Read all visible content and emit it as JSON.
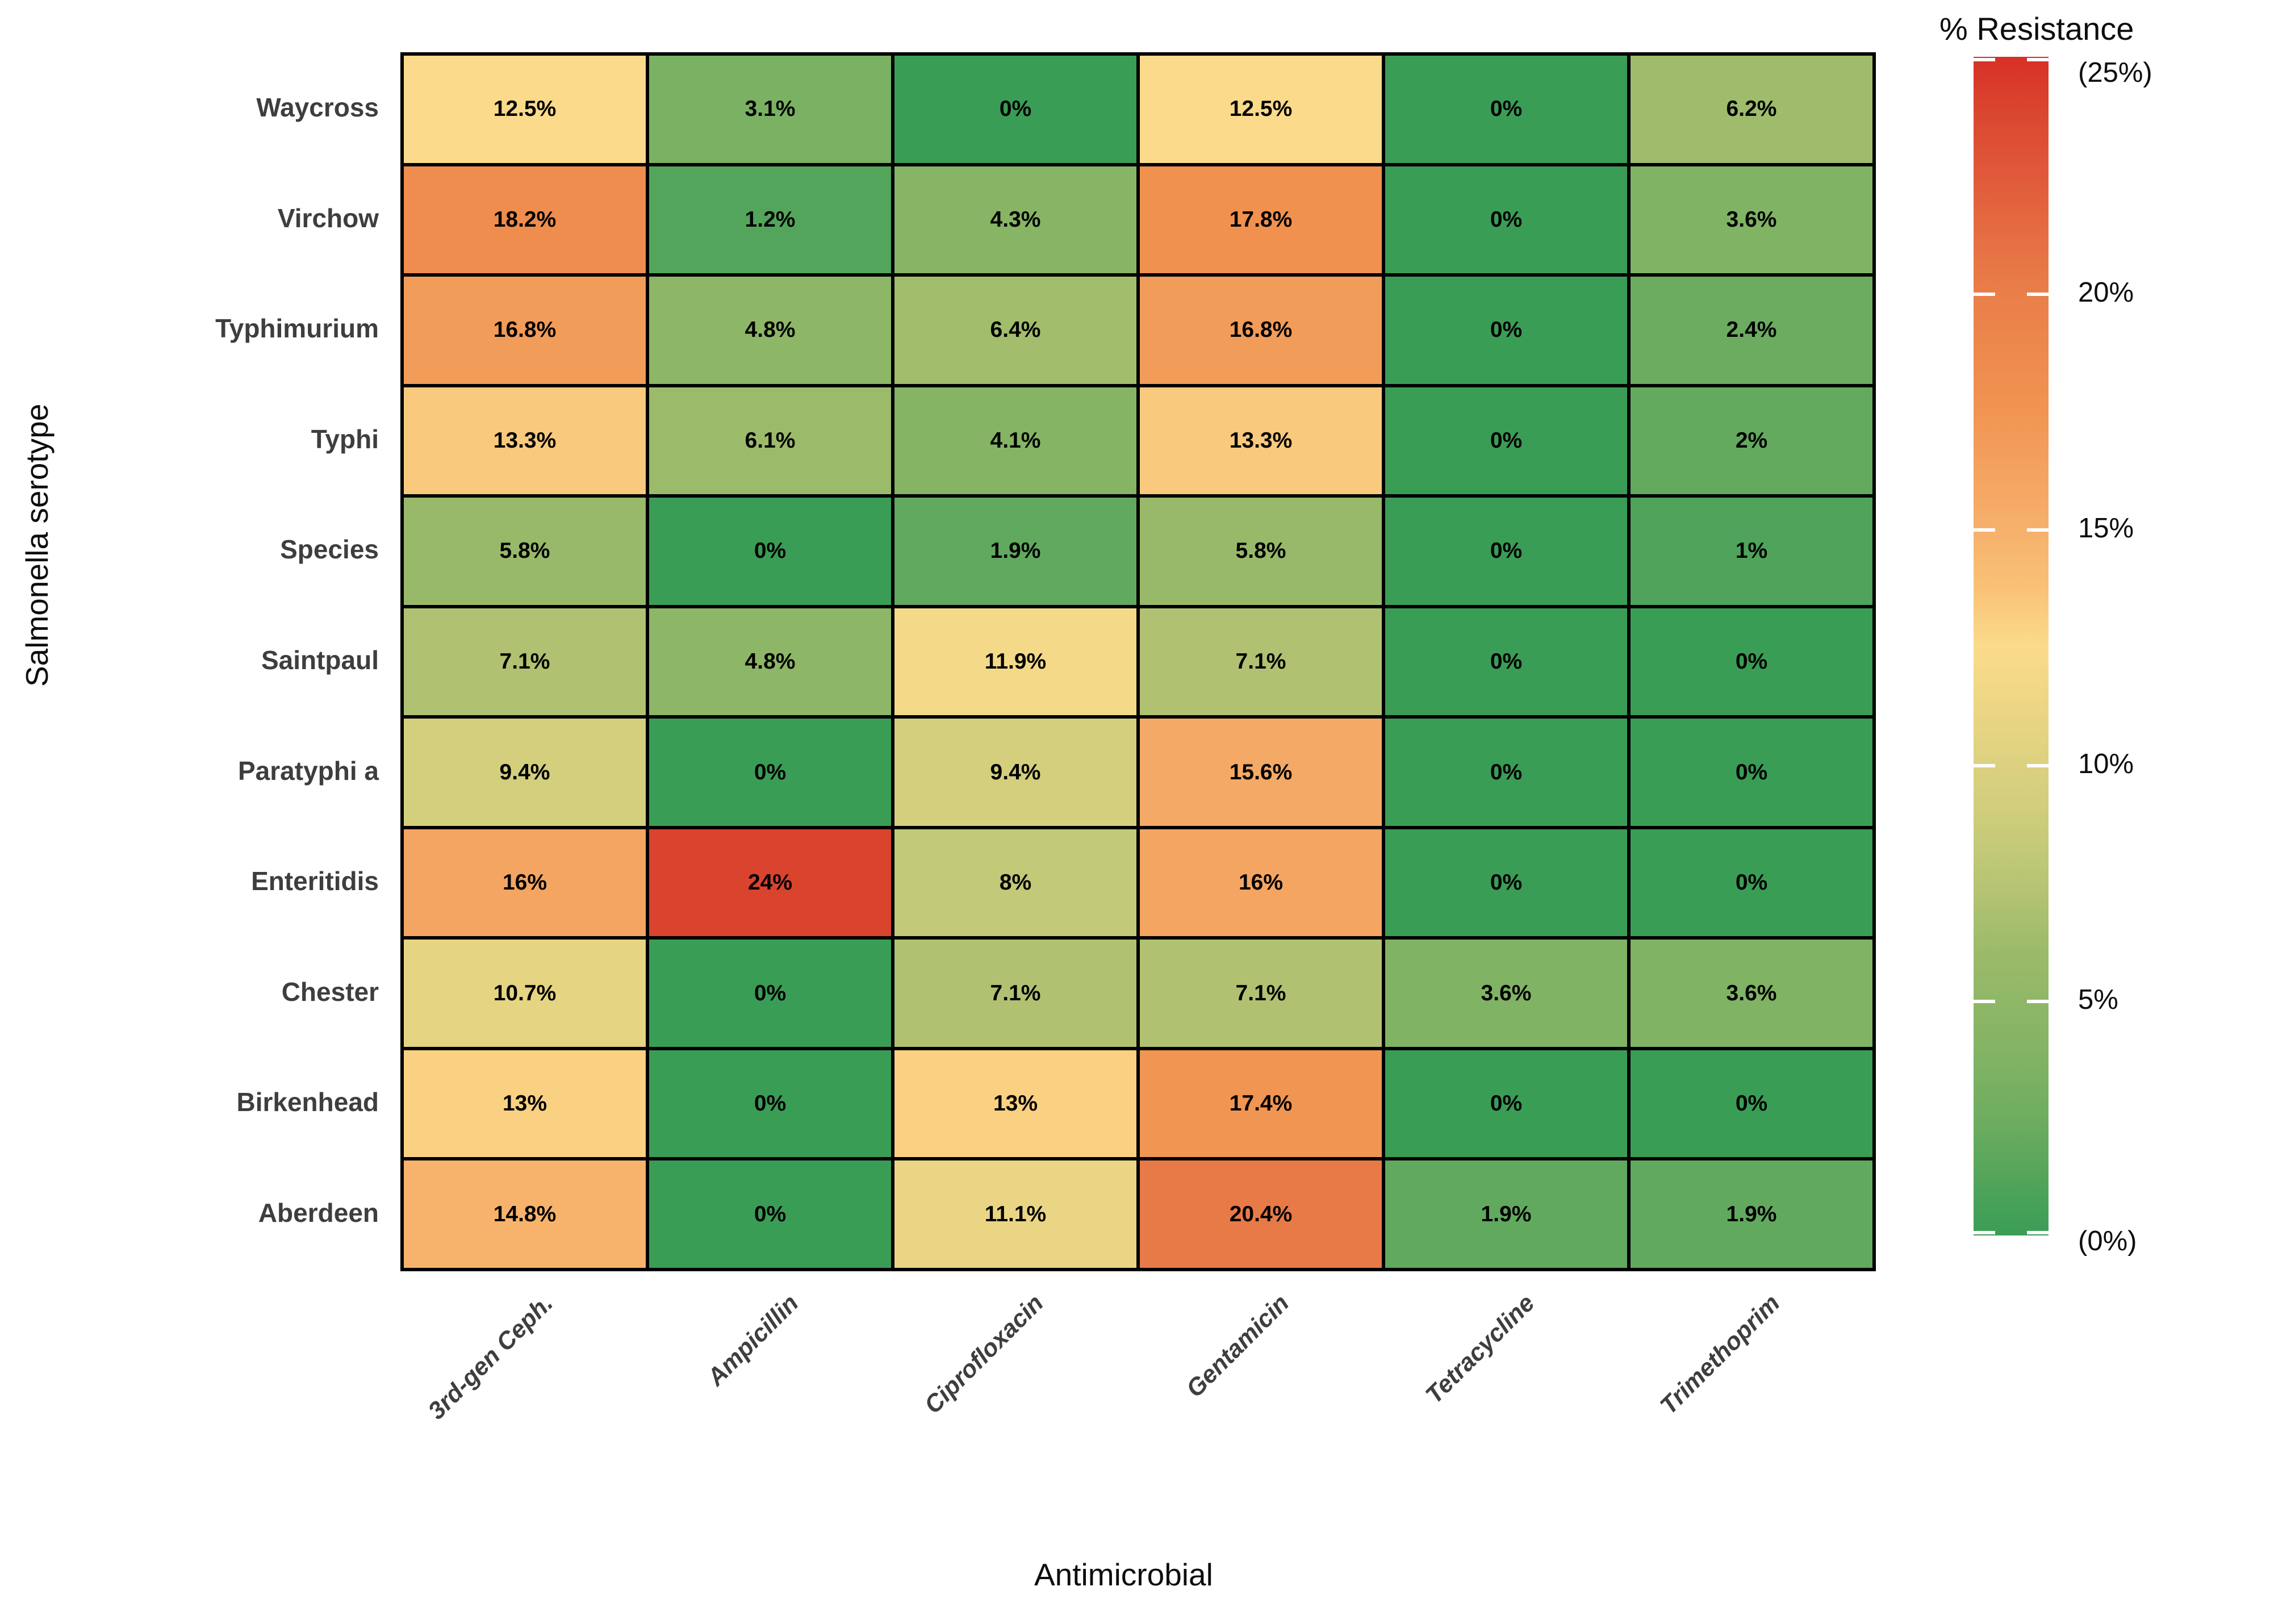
{
  "chart_data": {
    "type": "heatmap",
    "title": "",
    "xlabel": "Antimicrobial",
    "ylabel": "Salmonella serotype",
    "rows": [
      "Waycross",
      "Virchow",
      "Typhimurium",
      "Typhi",
      "Species",
      "Saintpaul",
      "Paratyphi a",
      "Enteritidis",
      "Chester",
      "Birkenhead",
      "Aberdeen"
    ],
    "columns": [
      "3rd-gen Ceph.",
      "Ampicillin",
      "Ciprofloxacin",
      "Gentamicin",
      "Tetracycline",
      "Trimethoprim"
    ],
    "values": [
      [
        12.5,
        3.1,
        0,
        12.5,
        0,
        6.2
      ],
      [
        18.2,
        1.2,
        4.3,
        17.8,
        0,
        3.6
      ],
      [
        16.8,
        4.8,
        6.4,
        16.8,
        0,
        2.4
      ],
      [
        13.3,
        6.1,
        4.1,
        13.3,
        0,
        2
      ],
      [
        5.8,
        0,
        1.9,
        5.8,
        0,
        1
      ],
      [
        7.1,
        4.8,
        11.9,
        7.1,
        0,
        0
      ],
      [
        9.4,
        0,
        9.4,
        15.6,
        0,
        0
      ],
      [
        16,
        24,
        8,
        16,
        0,
        0
      ],
      [
        10.7,
        0,
        7.1,
        7.1,
        3.6,
        3.6
      ],
      [
        13,
        0,
        13,
        17.4,
        0,
        0
      ],
      [
        14.8,
        0,
        11.1,
        20.4,
        1.9,
        1.9
      ]
    ],
    "labels": [
      [
        "12.5%",
        "3.1%",
        "0%",
        "12.5%",
        "0%",
        "6.2%"
      ],
      [
        "18.2%",
        "1.2%",
        "4.3%",
        "17.8%",
        "0%",
        "3.6%"
      ],
      [
        "16.8%",
        "4.8%",
        "6.4%",
        "16.8%",
        "0%",
        "2.4%"
      ],
      [
        "13.3%",
        "6.1%",
        "4.1%",
        "13.3%",
        "0%",
        "2%"
      ],
      [
        "5.8%",
        "0%",
        "1.9%",
        "5.8%",
        "0%",
        "1%"
      ],
      [
        "7.1%",
        "4.8%",
        "11.9%",
        "7.1%",
        "0%",
        "0%"
      ],
      [
        "9.4%",
        "0%",
        "9.4%",
        "15.6%",
        "0%",
        "0%"
      ],
      [
        "16%",
        "24%",
        "8%",
        "16%",
        "0%",
        "0%"
      ],
      [
        "10.7%",
        "0%",
        "7.1%",
        "7.1%",
        "3.6%",
        "3.6%"
      ],
      [
        "13%",
        "0%",
        "13%",
        "17.4%",
        "0%",
        "0%"
      ],
      [
        "14.8%",
        "0%",
        "11.1%",
        "20.4%",
        "1.9%",
        "1.9%"
      ]
    ],
    "legend": {
      "title": "% Resistance",
      "min": 0,
      "max": 25,
      "ticks": [
        {
          "value": 25,
          "label": "(25%)"
        },
        {
          "value": 20,
          "label": "20%"
        },
        {
          "value": 15,
          "label": "15%"
        },
        {
          "value": 10,
          "label": "10%"
        },
        {
          "value": 5,
          "label": "5%"
        },
        {
          "value": 0,
          "label": "(0%)"
        }
      ],
      "position": "right"
    },
    "grid": "off",
    "colors": {
      "low": "#3A9D56",
      "mid": "#FBDB8B",
      "high": "#D73027",
      "anchors": [
        {
          "value": 0,
          "color": "#3A9D56"
        },
        {
          "value": 3.1,
          "color": "#7AB163"
        },
        {
          "value": 6,
          "color": "#9ABA69"
        },
        {
          "value": 8,
          "color": "#C2C978"
        },
        {
          "value": 10.5,
          "color": "#E3D381"
        },
        {
          "value": 12.5,
          "color": "#FBDB8B"
        },
        {
          "value": 14,
          "color": "#F8BC72"
        },
        {
          "value": 15.6,
          "color": "#F5A966"
        },
        {
          "value": 17.8,
          "color": "#F0914F"
        },
        {
          "value": 20.4,
          "color": "#E87A48"
        },
        {
          "value": 22.5,
          "color": "#E0593A"
        },
        {
          "value": 24,
          "color": "#DA432E"
        },
        {
          "value": 25,
          "color": "#D73027"
        }
      ],
      "cell_border": "#000000",
      "cell_text": "#000000",
      "axis_label_text": "#3e3e3e"
    }
  }
}
